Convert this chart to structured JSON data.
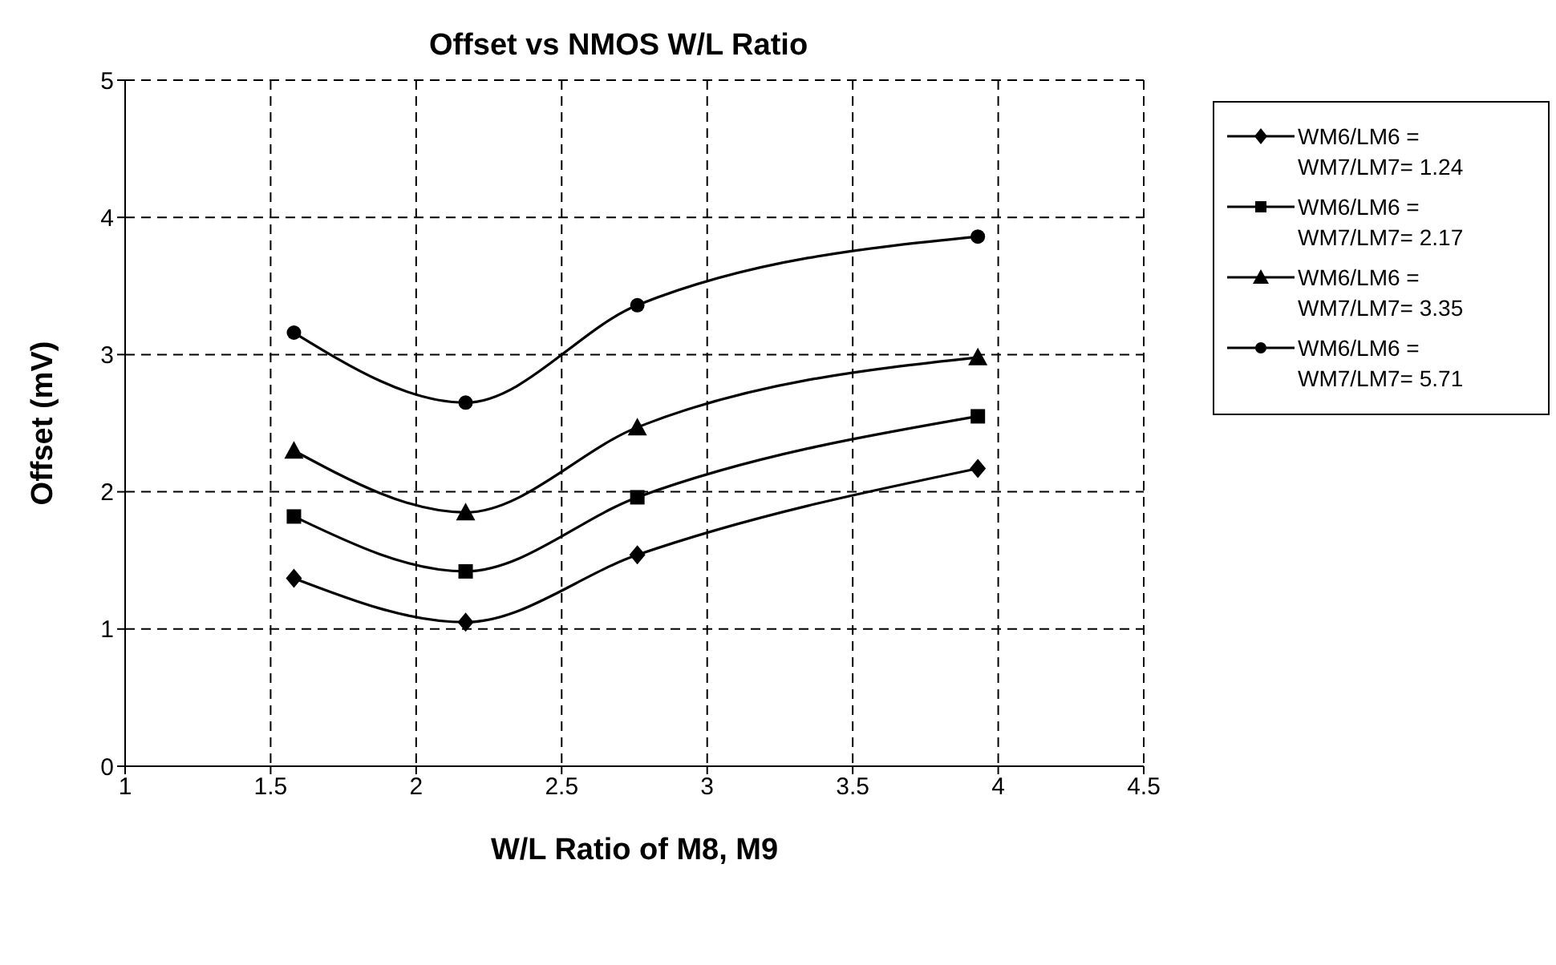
{
  "chart_data": {
    "type": "line",
    "title": "Offset vs NMOS W/L Ratio",
    "xlabel": "W/L Ratio of M8, M9",
    "ylabel": "Offset (mV)",
    "x": [
      1.58,
      2.17,
      2.76,
      3.93
    ],
    "series": [
      {
        "name": "WM6/LM6 =\nWM7/LM7= 1.24",
        "color": "#000000",
        "marker": "diamond",
        "values": [
          1.37,
          1.05,
          1.54,
          2.17
        ]
      },
      {
        "name": "WM6/LM6 =\nWM7/LM7= 2.17",
        "color": "#000000",
        "marker": "square",
        "values": [
          1.82,
          1.42,
          1.96,
          2.55
        ]
      },
      {
        "name": "WM6/LM6 =\nWM7/LM7= 3.35",
        "color": "#000000",
        "marker": "triangle",
        "values": [
          2.3,
          1.85,
          2.47,
          2.98
        ]
      },
      {
        "name": "WM6/LM6 =\nWM7/LM7= 5.71",
        "color": "#000000",
        "marker": "circle",
        "values": [
          3.16,
          2.65,
          3.36,
          3.86
        ]
      }
    ],
    "xlim": [
      1,
      4.5
    ],
    "xticks": [
      1,
      1.5,
      2,
      2.5,
      3,
      3.5,
      4,
      4.5
    ],
    "ylim": [
      0,
      5
    ],
    "yticks": [
      0,
      1,
      2,
      3,
      4,
      5
    ],
    "grid": true,
    "legend": "right",
    "line_style": "solid"
  }
}
